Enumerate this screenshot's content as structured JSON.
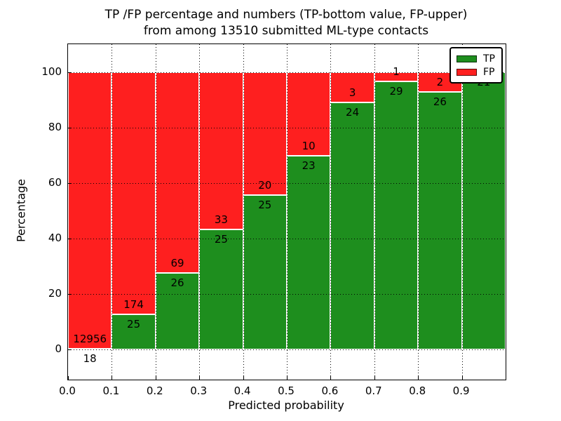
{
  "title": {
    "line1": "TP /FP percentage and numbers (TP-bottom value, FP-upper)",
    "line2": "from among 13510 submitted ML-type contacts"
  },
  "chart_data": {
    "type": "bar",
    "stacked": true,
    "normalized_to_percent": true,
    "total_contacts": 13510,
    "bin_width": 0.1,
    "bin_starts": [
      0.0,
      0.1,
      0.2,
      0.3,
      0.4,
      0.5,
      0.6,
      0.7,
      0.8,
      0.9
    ],
    "series": [
      {
        "name": "TP",
        "color": "#1e8e1e",
        "counts": [
          18,
          25,
          26,
          25,
          25,
          23,
          24,
          29,
          26,
          21
        ],
        "pct": [
          0.14,
          12.56,
          27.37,
          43.1,
          55.56,
          69.7,
          88.89,
          96.67,
          92.86,
          100.0
        ]
      },
      {
        "name": "FP",
        "color": "#fe1f1f",
        "counts": [
          12956,
          174,
          69,
          33,
          20,
          10,
          3,
          1,
          2,
          0
        ]
      }
    ],
    "xlabel": "Predicted probability",
    "ylabel": "Percentage",
    "xtick_labels": [
      "0.0",
      "0.1",
      "0.2",
      "0.3",
      "0.4",
      "0.5",
      "0.6",
      "0.7",
      "0.8",
      "0.9"
    ],
    "xticks": [
      0.0,
      0.1,
      0.2,
      0.3,
      0.4,
      0.5,
      0.6,
      0.7,
      0.8,
      0.9
    ],
    "yticks": [
      0,
      20,
      40,
      60,
      80,
      100
    ],
    "xlim": [
      0.0,
      1.0
    ],
    "ylim": [
      -11,
      110
    ],
    "grid": "dotted",
    "legend_position": "upper right"
  },
  "legend": {
    "items": [
      {
        "label": "TP",
        "color": "#1e8e1e"
      },
      {
        "label": "FP",
        "color": "#fe1f1f"
      }
    ]
  }
}
